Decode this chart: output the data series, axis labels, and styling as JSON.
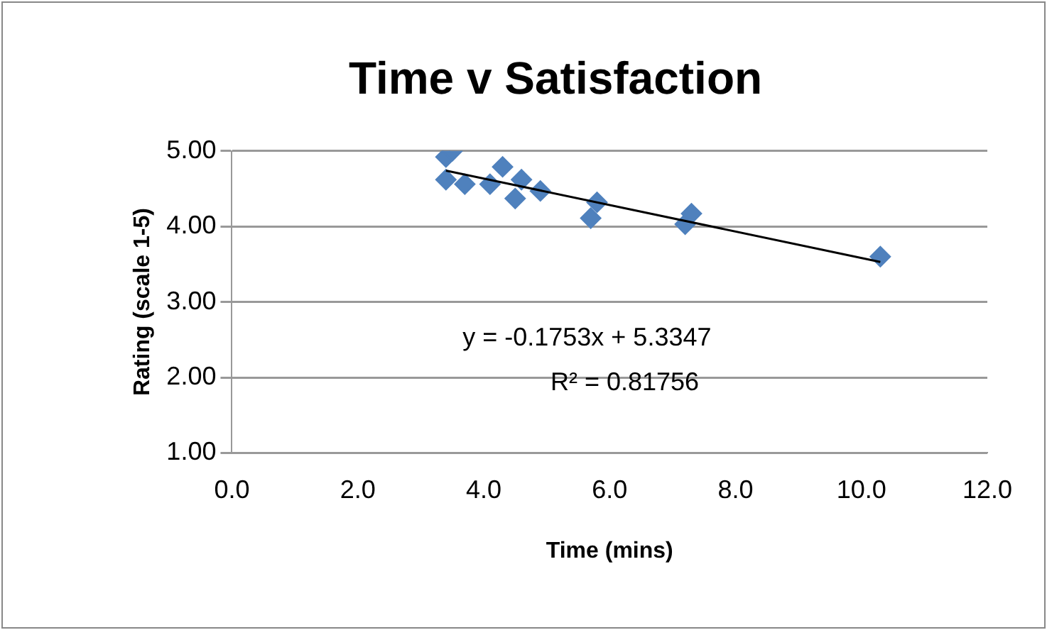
{
  "chart_data": {
    "type": "scatter",
    "title": "Time v Satisfaction",
    "xlabel": "Time (mins)",
    "ylabel": "Rating (scale 1-5)",
    "xlim": [
      0,
      12
    ],
    "xticks": [
      {
        "value": 0,
        "label": "0.0"
      },
      {
        "value": 2,
        "label": "2.0"
      },
      {
        "value": 4,
        "label": "4.0"
      },
      {
        "value": 6,
        "label": "6.0"
      },
      {
        "value": 8,
        "label": "8.0"
      },
      {
        "value": 10,
        "label": "10.0"
      },
      {
        "value": 12,
        "label": "12.0"
      }
    ],
    "ylim": [
      1,
      5
    ],
    "yticks": [
      {
        "value": 1,
        "label": "1.00"
      },
      {
        "value": 2,
        "label": "2.00"
      },
      {
        "value": 3,
        "label": "3.00"
      },
      {
        "value": 4,
        "label": "4.00"
      },
      {
        "value": 5,
        "label": "5.00"
      }
    ],
    "grid": "y",
    "legend": false,
    "marker": "diamond",
    "annotations": [
      "y = -0.1753x + 5.3347",
      "R² = 0.81756"
    ],
    "series": [
      {
        "color": "#4f81bd",
        "x": [
          3.4,
          3.5,
          3.4,
          3.7,
          4.1,
          4.3,
          4.5,
          4.6,
          4.9,
          5.7,
          5.8,
          7.2,
          7.3,
          10.3
        ],
        "values": [
          4.92,
          5.0,
          4.62,
          4.56,
          4.56,
          4.79,
          4.37,
          4.62,
          4.47,
          4.11,
          4.32,
          4.03,
          4.17,
          3.6
        ]
      },
      {
        "type": "line",
        "color": "#000000",
        "marker": "none",
        "x": [
          3.4,
          10.3
        ],
        "values": [
          4.74,
          3.53
        ]
      }
    ]
  }
}
